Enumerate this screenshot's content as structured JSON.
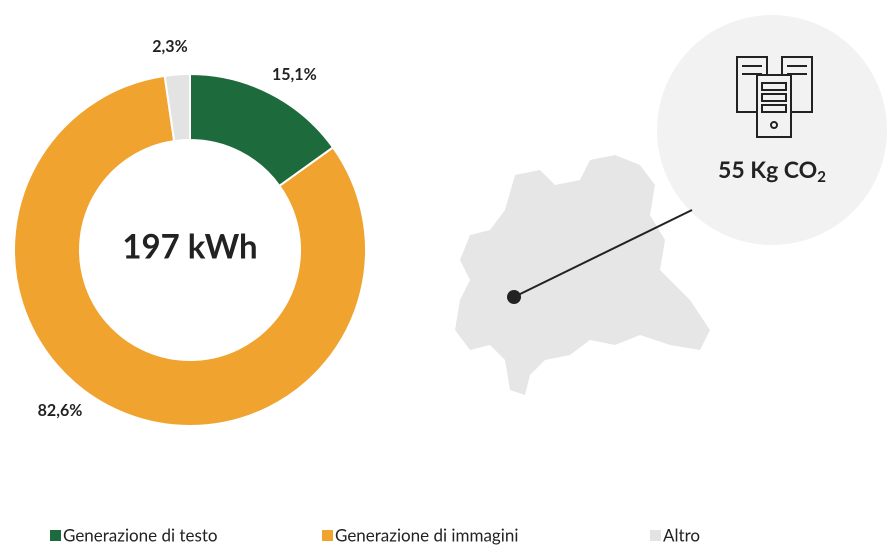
{
  "chart_data": {
    "type": "donut",
    "categories": [
      "Generazione di testo",
      "Generazione di immagini",
      "Altro"
    ],
    "values": [
      15.1,
      82.6,
      2.3
    ],
    "value_labels": [
      "15,1%",
      "82,6%",
      "2,3%"
    ],
    "colors": [
      "#1d6b3c",
      "#f0a32f",
      "#e3e3e3"
    ],
    "center_label": "197 kWh",
    "annotation": {
      "text": "55 Kg CO",
      "subscript": "2"
    }
  }
}
